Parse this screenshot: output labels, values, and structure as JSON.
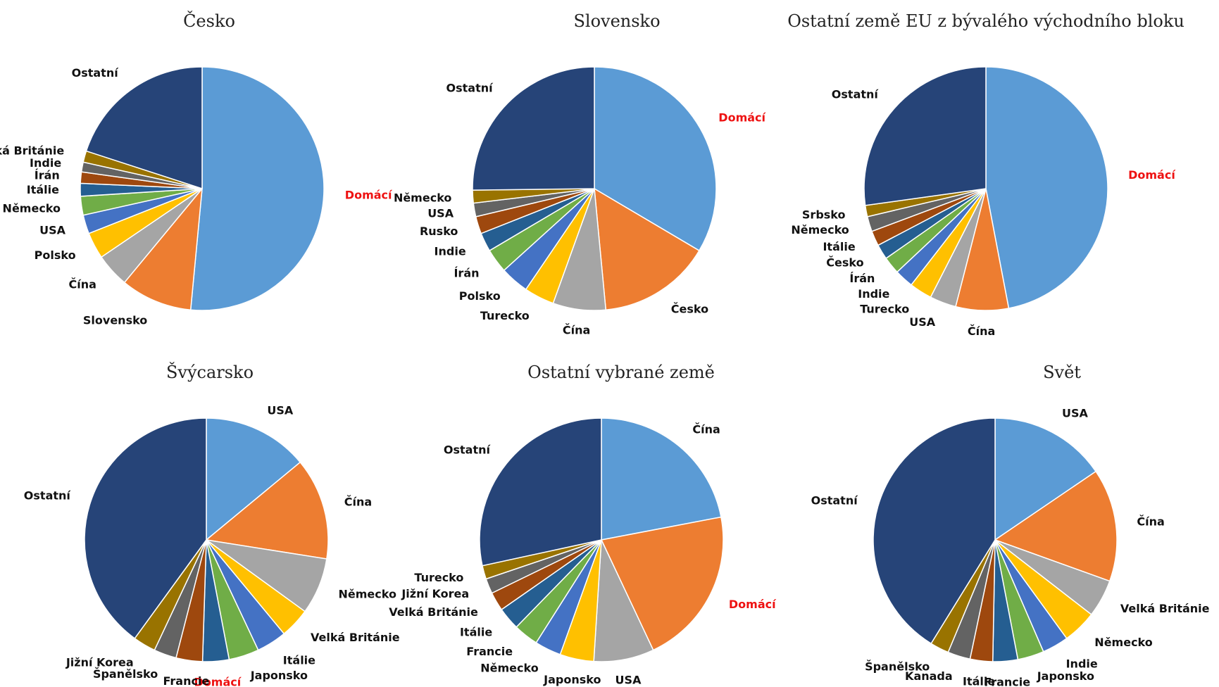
{
  "palette": [
    "#5b9bd5",
    "#ed7d31",
    "#a5a5a5",
    "#ffc000",
    "#4472c4",
    "#70ad47",
    "#255e91",
    "#9e480e",
    "#636363",
    "#997300",
    "#264478"
  ],
  "highlight_color": "#ee1111",
  "chart_data": [
    {
      "type": "pie",
      "title": "Česko",
      "slices": [
        {
          "label": "Domácí",
          "value": 51.5,
          "highlight": true
        },
        {
          "label": "Slovensko",
          "value": 9.5
        },
        {
          "label": "Čína",
          "value": 4.5
        },
        {
          "label": "Polsko",
          "value": 3.5
        },
        {
          "label": "USA",
          "value": 2.5
        },
        {
          "label": "Německo",
          "value": 2.5
        },
        {
          "label": "Itálie",
          "value": 1.7
        },
        {
          "label": "Írán",
          "value": 1.5
        },
        {
          "label": "Indie",
          "value": 1.3
        },
        {
          "label": "Velká Británie",
          "value": 1.5
        },
        {
          "label": "Ostatní",
          "value": 20.0
        }
      ]
    },
    {
      "type": "pie",
      "title": "Slovensko",
      "slices": [
        {
          "label": "Domácí",
          "value": 33.5,
          "highlight": true
        },
        {
          "label": "Česko",
          "value": 15.0
        },
        {
          "label": "Čína",
          "value": 7.0
        },
        {
          "label": "Turecko",
          "value": 4.0
        },
        {
          "label": "Polsko",
          "value": 3.8
        },
        {
          "label": "Írán",
          "value": 3.2
        },
        {
          "label": "Indie",
          "value": 2.5
        },
        {
          "label": "Rusko",
          "value": 2.3
        },
        {
          "label": "USA",
          "value": 1.8
        },
        {
          "label": "Německo",
          "value": 1.7
        },
        {
          "label": "Ostatní",
          "value": 25.2
        }
      ]
    },
    {
      "type": "pie",
      "title": "Ostatní země EU z bývalého východního bloku",
      "slices": [
        {
          "label": "Domácí",
          "value": 47.0,
          "highlight": true
        },
        {
          "label": "Čína",
          "value": 7.0
        },
        {
          "label": "USA",
          "value": 3.5
        },
        {
          "label": "Turecko",
          "value": 3.0
        },
        {
          "label": "Indie",
          "value": 2.5
        },
        {
          "label": "Írán",
          "value": 2.3
        },
        {
          "label": "Česko",
          "value": 2.0
        },
        {
          "label": "Itálie",
          "value": 2.0
        },
        {
          "label": "Německo",
          "value": 2.0
        },
        {
          "label": "Srbsko",
          "value": 1.5
        },
        {
          "label": "Ostatní",
          "value": 27.2
        }
      ]
    },
    {
      "type": "pie",
      "title": "Švýcarsko",
      "slices": [
        {
          "label": "USA",
          "value": 14.0
        },
        {
          "label": "Čína",
          "value": 13.5
        },
        {
          "label": "Německo",
          "value": 7.5
        },
        {
          "label": "Velká Británie",
          "value": 4.0
        },
        {
          "label": "Itálie",
          "value": 4.0
        },
        {
          "label": "Japonsko",
          "value": 4.0
        },
        {
          "label": "Domácí",
          "value": 3.5,
          "highlight": true
        },
        {
          "label": "Francie",
          "value": 3.5
        },
        {
          "label": "Španělsko",
          "value": 3.0
        },
        {
          "label": "Jižní Korea",
          "value": 3.0
        },
        {
          "label": "Ostatní",
          "value": 40.0
        }
      ]
    },
    {
      "type": "pie",
      "title": "Ostatní vybrané země",
      "slices": [
        {
          "label": "Čína",
          "value": 22.0
        },
        {
          "label": "Domácí",
          "value": 21.0,
          "highlight": true
        },
        {
          "label": "USA",
          "value": 8.0
        },
        {
          "label": "Japonsko",
          "value": 4.5
        },
        {
          "label": "Německo",
          "value": 3.5
        },
        {
          "label": "Francie",
          "value": 3.3
        },
        {
          "label": "Itálie",
          "value": 3.0
        },
        {
          "label": "Velká Británie",
          "value": 2.5
        },
        {
          "label": "Jižní Korea",
          "value": 2.0
        },
        {
          "label": "Turecko",
          "value": 1.8
        },
        {
          "label": "Ostatní",
          "value": 28.4
        }
      ]
    },
    {
      "type": "pie",
      "title": "Svět",
      "slices": [
        {
          "label": "USA",
          "value": 15.5
        },
        {
          "label": "Čína",
          "value": 15.0
        },
        {
          "label": "Velká Británie",
          "value": 5.0
        },
        {
          "label": "Německo",
          "value": 4.5
        },
        {
          "label": "Indie",
          "value": 3.5
        },
        {
          "label": "Japonsko",
          "value": 3.5
        },
        {
          "label": "Francie",
          "value": 3.3
        },
        {
          "label": "Itálie",
          "value": 3.0
        },
        {
          "label": "Kanada",
          "value": 3.0
        },
        {
          "label": "Španělsko",
          "value": 2.5
        },
        {
          "label": "Ostatní",
          "value": 41.2
        }
      ]
    }
  ]
}
